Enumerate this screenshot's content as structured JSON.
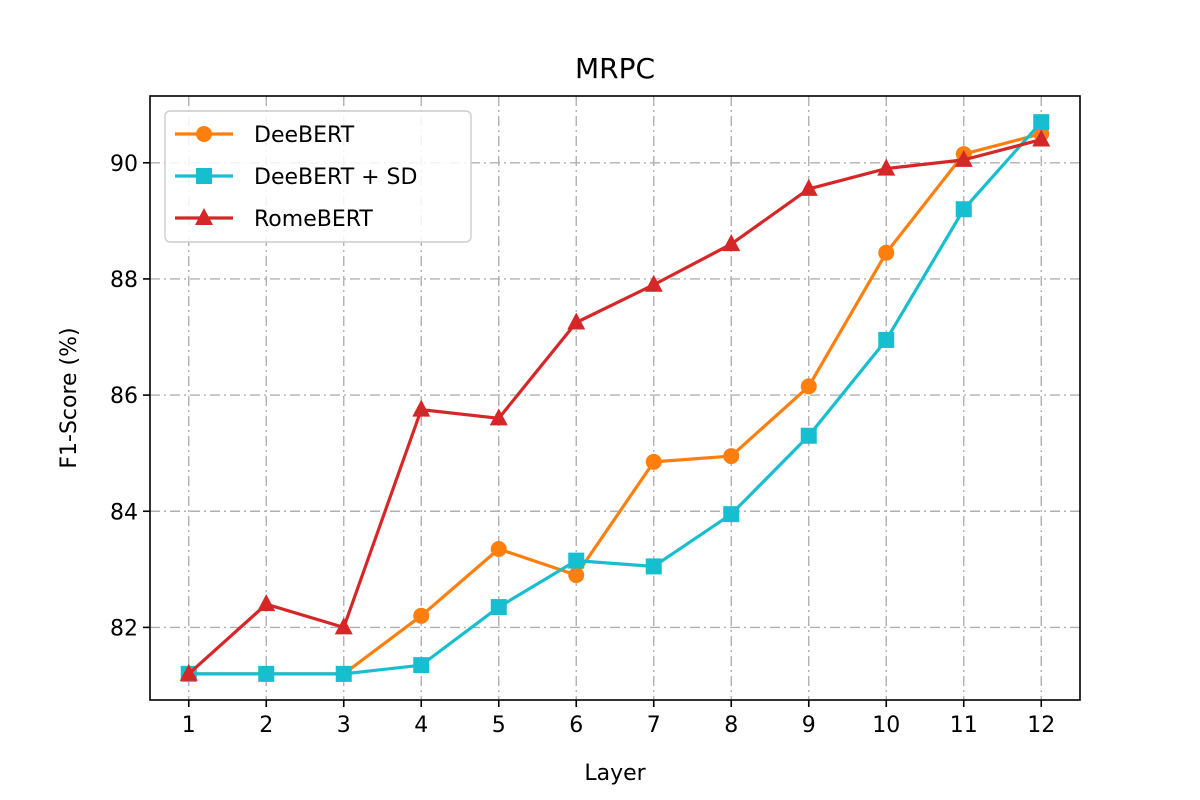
{
  "chart_data": {
    "type": "line",
    "title": "MRPC",
    "xlabel": "Layer",
    "ylabel": "F1-Score (%)",
    "x": [
      1,
      2,
      3,
      4,
      5,
      6,
      7,
      8,
      9,
      10,
      11,
      12
    ],
    "xlim": [
      0.5,
      12.5
    ],
    "ylim": [
      80.75,
      91.15
    ],
    "yticks": [
      82,
      84,
      86,
      88,
      90
    ],
    "grid": true,
    "legend_position": "top-left",
    "series": [
      {
        "name": "DeeBERT",
        "color": "#ff7f0e",
        "marker": "circle",
        "values": [
          81.2,
          81.2,
          81.2,
          82.2,
          83.35,
          82.9,
          84.85,
          84.95,
          86.15,
          88.45,
          90.15,
          90.5
        ]
      },
      {
        "name": "DeeBERT + SD",
        "color": "#17becf",
        "marker": "square",
        "values": [
          81.2,
          81.2,
          81.2,
          81.35,
          82.35,
          83.15,
          83.05,
          83.95,
          85.3,
          86.95,
          89.2,
          90.7
        ]
      },
      {
        "name": "RomeBERT",
        "color": "#d62728",
        "marker": "triangle",
        "values": [
          81.2,
          82.4,
          82.0,
          85.75,
          85.6,
          87.25,
          87.9,
          88.6,
          89.55,
          89.9,
          90.05,
          90.4
        ]
      }
    ]
  }
}
